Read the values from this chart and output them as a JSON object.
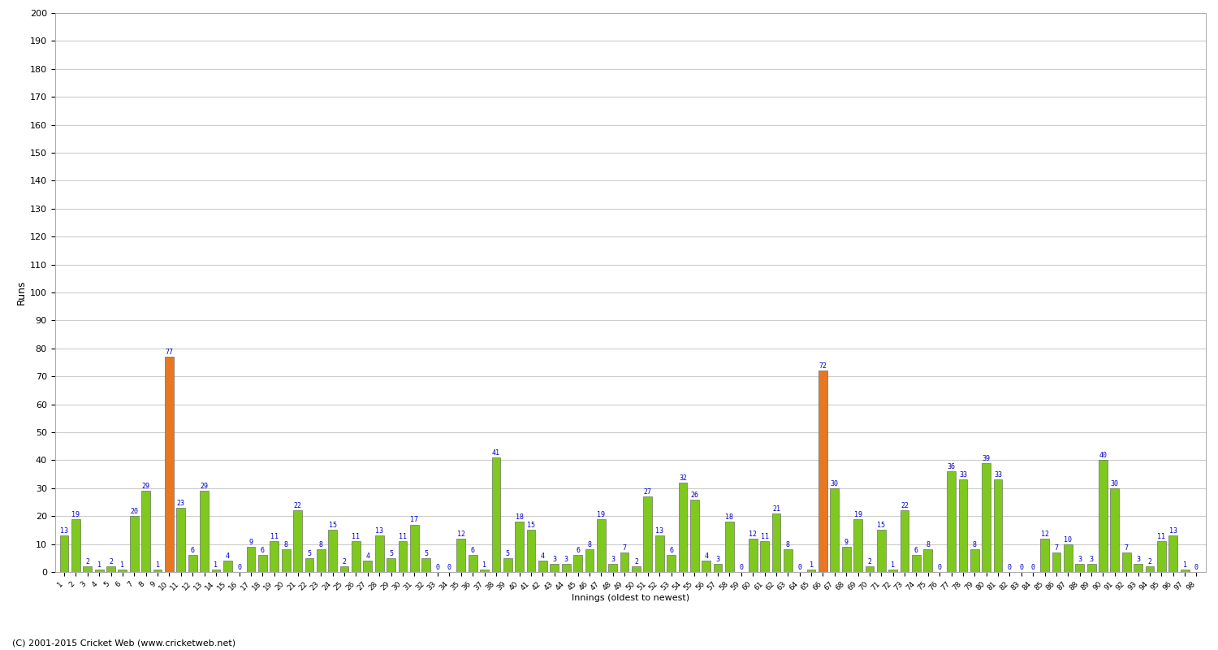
{
  "title": "",
  "xlabel": "Innings (oldest to newest)",
  "ylabel": "Runs",
  "ylim": [
    0,
    200
  ],
  "yticks": [
    0,
    10,
    20,
    30,
    40,
    50,
    60,
    70,
    80,
    90,
    100,
    110,
    120,
    130,
    140,
    150,
    160,
    170,
    180,
    190,
    200
  ],
  "scores": [
    13,
    19,
    2,
    1,
    2,
    1,
    20,
    29,
    1,
    77,
    23,
    6,
    29,
    1,
    4,
    0,
    9,
    6,
    11,
    8,
    22,
    5,
    8,
    15,
    2,
    11,
    4,
    13,
    5,
    11,
    17,
    5,
    0,
    0,
    12,
    6,
    1,
    41,
    5,
    18,
    15,
    4,
    3,
    3,
    6,
    8,
    19,
    3,
    7,
    2,
    27,
    13,
    6,
    32,
    26,
    4,
    3,
    18,
    0,
    12,
    11,
    21,
    8,
    0,
    1,
    72,
    30,
    9,
    19,
    2,
    15,
    1,
    22,
    6,
    8,
    0,
    36,
    33,
    8,
    39,
    33,
    0,
    0,
    0,
    12,
    7,
    10,
    3,
    3,
    40,
    30,
    7,
    3,
    2,
    11,
    13,
    1,
    0
  ],
  "orange_indices": [
    9,
    65
  ],
  "bar_color_green": "#7ec820",
  "bar_color_orange": "#e87722",
  "label_color": "#0000cc",
  "background_color": "#ffffff",
  "grid_color": "#cccccc",
  "footer": "(C) 2001-2015 Cricket Web (www.cricketweb.net)"
}
